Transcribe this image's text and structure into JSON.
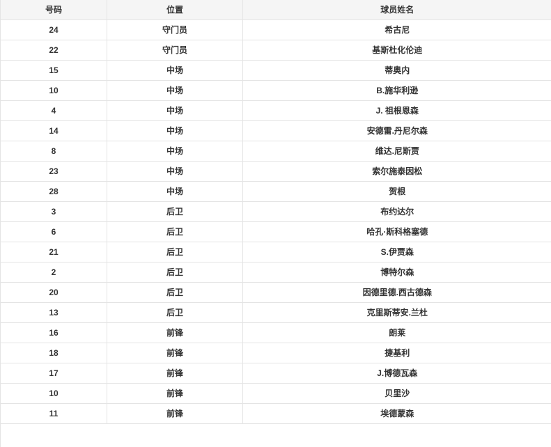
{
  "table": {
    "columns": [
      {
        "key": "number",
        "label": "号码"
      },
      {
        "key": "position",
        "label": "位置"
      },
      {
        "key": "name",
        "label": "球员姓名"
      }
    ],
    "rows": [
      {
        "number": "24",
        "position": "守门员",
        "name": "希古尼"
      },
      {
        "number": "22",
        "position": "守门员",
        "name": "基斯杜化伦迪"
      },
      {
        "number": "15",
        "position": "中场",
        "name": "蒂奥内"
      },
      {
        "number": "10",
        "position": "中场",
        "name": "B.施华利逊"
      },
      {
        "number": "4",
        "position": "中场",
        "name": "J. 祖根恩森"
      },
      {
        "number": "14",
        "position": "中场",
        "name": "安德雷.丹尼尔森"
      },
      {
        "number": "8",
        "position": "中场",
        "name": "维达.尼斯贾"
      },
      {
        "number": "23",
        "position": "中场",
        "name": "索尔施泰因松"
      },
      {
        "number": "28",
        "position": "中场",
        "name": "贺根"
      },
      {
        "number": "3",
        "position": "后卫",
        "name": "布约达尔"
      },
      {
        "number": "6",
        "position": "后卫",
        "name": "哈孔·斯科格塞德"
      },
      {
        "number": "21",
        "position": "后卫",
        "name": "S.伊贾森"
      },
      {
        "number": "2",
        "position": "后卫",
        "name": "博特尔森"
      },
      {
        "number": "20",
        "position": "后卫",
        "name": "因德里德.西古德森"
      },
      {
        "number": "13",
        "position": "后卫",
        "name": "克里斯蒂安.兰杜"
      },
      {
        "number": "16",
        "position": "前锋",
        "name": "朗莱"
      },
      {
        "number": "18",
        "position": "前锋",
        "name": "捷基利"
      },
      {
        "number": "17",
        "position": "前锋",
        "name": "J.博德瓦森"
      },
      {
        "number": "10",
        "position": "前锋",
        "name": "贝里沙"
      },
      {
        "number": "11",
        "position": "前锋",
        "name": "埃德蒙森"
      }
    ]
  },
  "colors": {
    "header_bg": "#f5f5f5",
    "border": "#e4e4e4",
    "text": "#333333",
    "row_bg": "#ffffff"
  }
}
